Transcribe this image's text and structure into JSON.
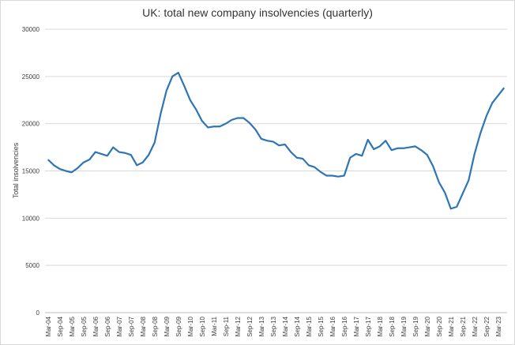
{
  "chart_data": {
    "type": "line",
    "title": "UK: total new company insolvencies (quarterly)",
    "y_label": "Total insolvencies",
    "categories": [
      "Mar-04",
      null,
      "Sep-04",
      null,
      "Mar-05",
      null,
      "Sep-05",
      null,
      "Mar-06",
      null,
      "Sep-06",
      null,
      "Mar-07",
      null,
      "Sep-07",
      null,
      "Mar-08",
      null,
      "Sep-08",
      null,
      "Mar-09",
      null,
      "Sep-09",
      null,
      "Mar-10",
      null,
      "Sep-10",
      null,
      "Mar-11",
      null,
      "Sep-11",
      null,
      "Mar-12",
      null,
      "Sep-12",
      null,
      "Mar-13",
      null,
      "Sep-13",
      null,
      "Mar-14",
      null,
      "Sep-14",
      null,
      "Mar-15",
      null,
      "Sep-15",
      null,
      "Mar-16",
      null,
      "Sep-16",
      null,
      "Mar-17",
      null,
      "Sep-17",
      null,
      "Mar-18",
      null,
      "Sep-18",
      null,
      "Mar-19",
      null,
      "Sep-19",
      null,
      "Mar-20",
      null,
      "Sep-20",
      null,
      "Mar-21",
      null,
      "Sep-21",
      null,
      "Mar-22",
      null,
      "Sep-22",
      null,
      "Mar-23",
      null
    ],
    "series": [
      {
        "name": "Total insolvencies",
        "color": "#2e75b6",
        "values": [
          16200,
          15600,
          15200,
          15000,
          14850,
          15300,
          15900,
          16200,
          17000,
          16800,
          16600,
          17500,
          17000,
          16900,
          16700,
          15600,
          15900,
          16700,
          18000,
          21000,
          23500,
          25000,
          25400,
          24000,
          22500,
          21500,
          20300,
          19600,
          19700,
          19700,
          20000,
          20400,
          20600,
          20600,
          20100,
          19400,
          18400,
          18200,
          18100,
          17700,
          17800,
          17000,
          16400,
          16300,
          15600,
          15400,
          14900,
          14500,
          14500,
          14400,
          14500,
          16400,
          16800,
          16600,
          18300,
          17300,
          17600,
          18200,
          17200,
          17400,
          17400,
          17500,
          17600,
          17200,
          16700,
          15500,
          13800,
          12700,
          11000,
          11200,
          12600,
          14000,
          16800,
          19000,
          20800,
          22200,
          23000,
          23800
        ]
      }
    ],
    "ylim": [
      0,
      30000
    ],
    "yticks": [
      0,
      5000,
      10000,
      15000,
      20000,
      25000,
      30000
    ],
    "grid": true
  }
}
